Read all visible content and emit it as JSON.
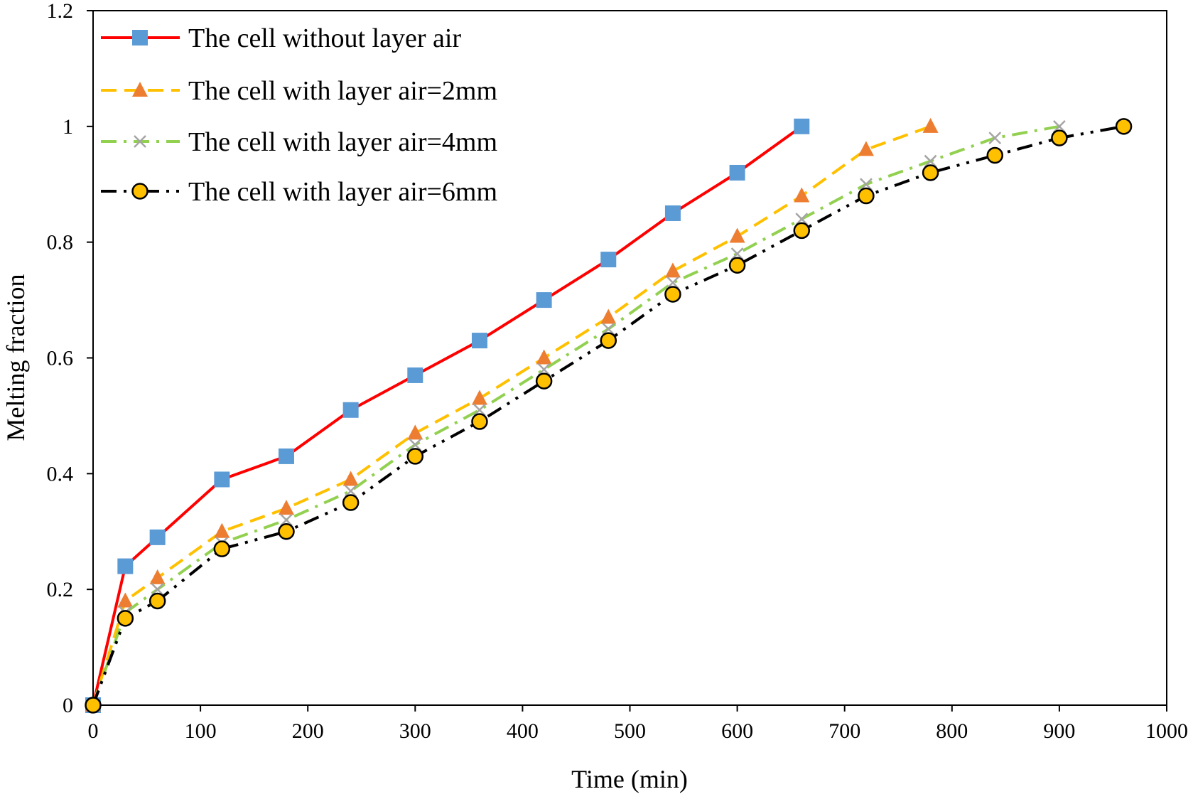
{
  "chart_data": {
    "type": "line",
    "title": "",
    "xlabel": "Time (min)",
    "ylabel": "Melting fraction",
    "xlim": [
      0,
      1000
    ],
    "ylim": [
      0,
      1.2
    ],
    "xticks": [
      "0",
      "100",
      "200",
      "300",
      "400",
      "500",
      "600",
      "700",
      "800",
      "900",
      "1000"
    ],
    "yticks": [
      "0",
      "0.2",
      "0.4",
      "0.6",
      "0.8",
      "1",
      "1.2"
    ],
    "grid": false,
    "legend_position": "top-left",
    "series": [
      {
        "name": "The cell without layer air",
        "line_color": "#FF0000",
        "marker_color": "#5B9BD5",
        "line_style": "solid",
        "marker": "square",
        "x": [
          0,
          30,
          60,
          120,
          180,
          240,
          300,
          360,
          420,
          480,
          540,
          600,
          660
        ],
        "y": [
          0,
          0.24,
          0.29,
          0.39,
          0.43,
          0.51,
          0.57,
          0.63,
          0.7,
          0.77,
          0.85,
          0.92,
          1.0
        ]
      },
      {
        "name": "The cell with layer air=2mm",
        "line_color": "#FFC000",
        "marker_color": "#ED7D31",
        "line_style": "dashed",
        "marker": "triangle",
        "x": [
          0,
          30,
          60,
          120,
          180,
          240,
          300,
          360,
          420,
          480,
          540,
          600,
          660,
          720,
          780
        ],
        "y": [
          0,
          0.18,
          0.22,
          0.3,
          0.34,
          0.39,
          0.47,
          0.53,
          0.6,
          0.67,
          0.75,
          0.81,
          0.88,
          0.96,
          1.0
        ]
      },
      {
        "name": "The cell with layer air=4mm",
        "line_color": "#92D050",
        "marker_color": "#A5A5A5",
        "line_style": "dashdot",
        "marker": "x",
        "x": [
          0,
          30,
          60,
          120,
          180,
          240,
          300,
          360,
          420,
          480,
          540,
          600,
          660,
          720,
          780,
          840,
          900
        ],
        "y": [
          0,
          0.16,
          0.2,
          0.28,
          0.32,
          0.37,
          0.45,
          0.51,
          0.58,
          0.65,
          0.73,
          0.78,
          0.84,
          0.9,
          0.94,
          0.98,
          1.0
        ]
      },
      {
        "name": "The cell with layer air=6mm",
        "line_color": "#000000",
        "marker_color": "#FFC000",
        "line_style": "dashdotdot",
        "marker": "circle",
        "x": [
          0,
          30,
          60,
          120,
          180,
          240,
          300,
          360,
          420,
          480,
          540,
          600,
          660,
          720,
          780,
          840,
          900,
          960
        ],
        "y": [
          0,
          0.15,
          0.18,
          0.27,
          0.3,
          0.35,
          0.43,
          0.49,
          0.56,
          0.63,
          0.71,
          0.76,
          0.82,
          0.88,
          0.92,
          0.95,
          0.98,
          1.0
        ]
      }
    ]
  }
}
